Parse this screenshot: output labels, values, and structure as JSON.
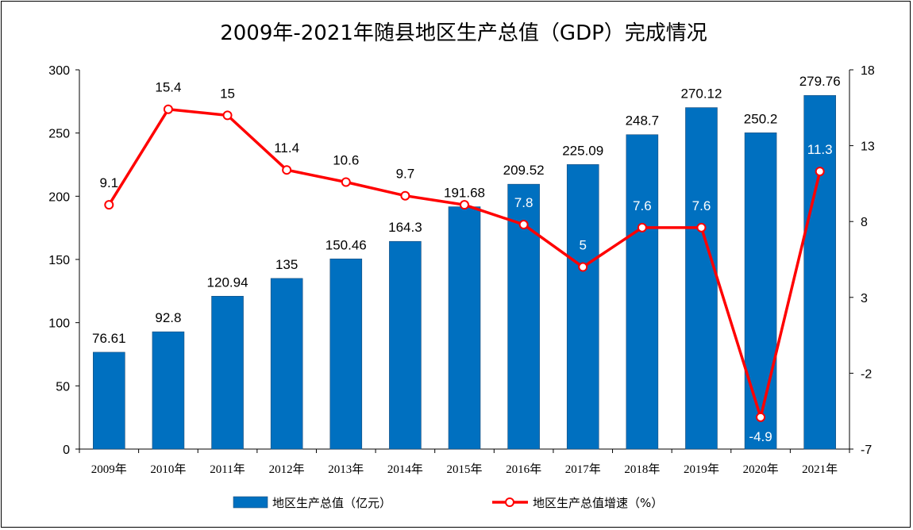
{
  "chart_data": {
    "type": "bar",
    "title": "2009年-2021年随县地区生产总值（GDP）完成情况",
    "categories": [
      "2009年",
      "2010年",
      "2011年",
      "2012年",
      "2013年",
      "2014年",
      "2015年",
      "2016年",
      "2017年",
      "2018年",
      "2019年",
      "2020年",
      "2021年"
    ],
    "series": [
      {
        "name": "地区生产总值（亿元）",
        "type": "bar",
        "axis": "left",
        "color": "#0070c0",
        "values": [
          76.61,
          92.8,
          120.94,
          135,
          150.46,
          164.3,
          191.68,
          209.52,
          225.09,
          248.7,
          270.12,
          250.2,
          279.76
        ],
        "labels": [
          "76.61",
          "92.8",
          "120.94",
          "135",
          "150.46",
          "164.3",
          "191.68",
          "209.52",
          "225.09",
          "248.7",
          "270.12",
          "250.2",
          "279.76"
        ]
      },
      {
        "name": "地区生产总值增速（%）",
        "type": "line",
        "axis": "right",
        "color": "#ff0000",
        "values": [
          9.1,
          15.4,
          15,
          11.4,
          10.6,
          9.7,
          9.1,
          7.8,
          5,
          7.6,
          7.6,
          -4.9,
          11.3
        ],
        "labels": [
          "9.1",
          "15.4",
          "15",
          "11.4",
          "10.6",
          "9.7",
          "9.1",
          "7.8",
          "5",
          "7.6",
          "7.6",
          "-4.9",
          "11.3"
        ],
        "label_inside_bar": [
          false,
          false,
          false,
          false,
          false,
          false,
          true,
          true,
          true,
          true,
          true,
          true,
          true
        ]
      }
    ],
    "y_left": {
      "min": 0,
      "max": 300,
      "ticks": [
        "0",
        "50",
        "100",
        "150",
        "200",
        "250",
        "300"
      ]
    },
    "y_right": {
      "min": -7,
      "max": 18,
      "ticks": [
        "-7",
        "-2",
        "3",
        "8",
        "13",
        "18"
      ]
    },
    "grid": false,
    "legend_position": "bottom"
  }
}
